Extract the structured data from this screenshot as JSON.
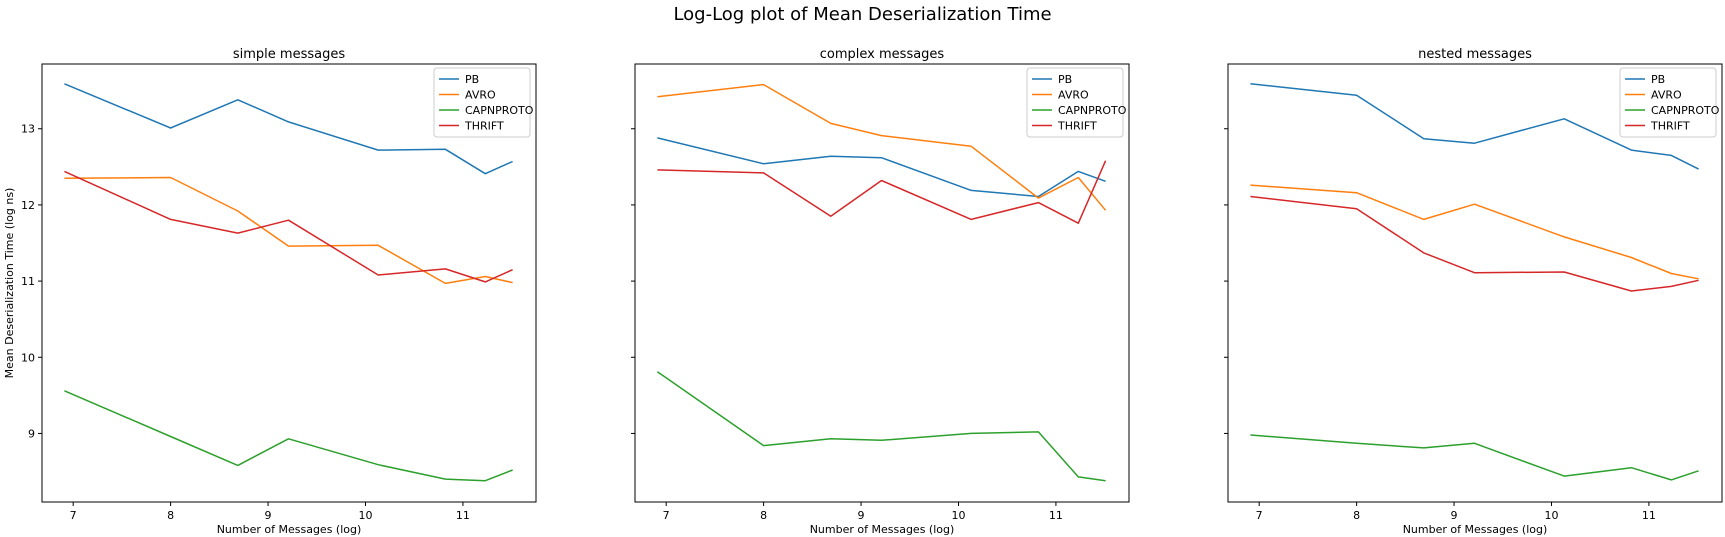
{
  "figure": {
    "suptitle": "Log-Log plot of Mean Deserialization Time"
  },
  "chart_data": [
    {
      "type": "line",
      "title": "simple messages",
      "xlabel": "Number of Messages (log)",
      "ylabel": "Mean Deserialization Time (log ns)",
      "xlim": [
        6.68,
        11.75
      ],
      "ylim": [
        8.1,
        13.85
      ],
      "xticks": [
        7,
        8,
        9,
        10,
        11
      ],
      "yticks": [
        9,
        10,
        11,
        12,
        13
      ],
      "ytick_labels_shown": true,
      "legend": "top-right",
      "series": [
        {
          "name": "PB",
          "color": "#1f77b4",
          "x": [
            6.91,
            8.0,
            8.69,
            9.21,
            10.13,
            10.82,
            11.23,
            11.51
          ],
          "y": [
            13.59,
            13.01,
            13.38,
            13.09,
            12.72,
            12.73,
            12.41,
            12.57
          ]
        },
        {
          "name": "AVRO",
          "color": "#ff7f0e",
          "x": [
            6.91,
            8.0,
            8.69,
            9.21,
            10.13,
            10.82,
            11.23,
            11.51
          ],
          "y": [
            12.35,
            12.36,
            11.92,
            11.46,
            11.47,
            10.97,
            11.06,
            10.98
          ]
        },
        {
          "name": "CAPNPROTO",
          "color": "#2ca02c",
          "x": [
            6.91,
            8.0,
            8.69,
            9.21,
            10.13,
            10.82,
            11.23,
            11.51
          ],
          "y": [
            9.56,
            8.96,
            8.58,
            8.93,
            8.59,
            8.4,
            8.38,
            8.52
          ]
        },
        {
          "name": "THRIFT",
          "color": "#d62728",
          "x": [
            6.91,
            8.0,
            8.69,
            9.21,
            10.13,
            10.82,
            11.23,
            11.51
          ],
          "y": [
            12.44,
            11.81,
            11.63,
            11.8,
            11.08,
            11.16,
            10.99,
            11.15
          ]
        }
      ]
    },
    {
      "type": "line",
      "title": "complex messages",
      "xlabel": "Number of Messages (log)",
      "ylabel": "",
      "xlim": [
        6.68,
        11.75
      ],
      "ylim": [
        8.1,
        13.85
      ],
      "xticks": [
        7,
        8,
        9,
        10,
        11
      ],
      "yticks": [
        9,
        10,
        11,
        12,
        13
      ],
      "ytick_labels_shown": false,
      "legend": "top-right",
      "series": [
        {
          "name": "PB",
          "color": "#1f77b4",
          "x": [
            6.91,
            8.0,
            8.69,
            9.21,
            10.13,
            10.82,
            11.23,
            11.51
          ],
          "y": [
            12.88,
            12.54,
            12.64,
            12.62,
            12.19,
            12.11,
            12.44,
            12.31
          ]
        },
        {
          "name": "AVRO",
          "color": "#ff7f0e",
          "x": [
            6.91,
            8.0,
            8.69,
            9.21,
            10.13,
            10.82,
            11.23,
            11.51
          ],
          "y": [
            13.42,
            13.58,
            13.07,
            12.91,
            12.77,
            12.09,
            12.36,
            11.93
          ]
        },
        {
          "name": "CAPNPROTO",
          "color": "#2ca02c",
          "x": [
            6.91,
            8.0,
            8.69,
            9.21,
            10.13,
            10.82,
            11.23,
            11.51
          ],
          "y": [
            9.81,
            8.84,
            8.93,
            8.91,
            9.0,
            9.02,
            8.43,
            8.38
          ]
        },
        {
          "name": "THRIFT",
          "color": "#d62728",
          "x": [
            6.91,
            8.0,
            8.69,
            9.21,
            10.13,
            10.82,
            11.23,
            11.51
          ],
          "y": [
            12.46,
            12.42,
            11.85,
            12.32,
            11.81,
            12.03,
            11.76,
            12.58
          ]
        }
      ]
    },
    {
      "type": "line",
      "title": "nested messages",
      "xlabel": "Number of Messages (log)",
      "ylabel": "",
      "xlim": [
        6.68,
        11.75
      ],
      "ylim": [
        8.1,
        13.85
      ],
      "xticks": [
        7,
        8,
        9,
        10,
        11
      ],
      "yticks": [
        9,
        10,
        11,
        12,
        13
      ],
      "ytick_labels_shown": false,
      "legend": "top-right",
      "series": [
        {
          "name": "PB",
          "color": "#1f77b4",
          "x": [
            6.91,
            8.0,
            8.69,
            9.21,
            10.13,
            10.82,
            11.23,
            11.51
          ],
          "y": [
            13.59,
            13.44,
            12.87,
            12.81,
            13.13,
            12.72,
            12.65,
            12.47
          ]
        },
        {
          "name": "AVRO",
          "color": "#ff7f0e",
          "x": [
            6.91,
            8.0,
            8.69,
            9.21,
            10.13,
            10.82,
            11.23,
            11.51
          ],
          "y": [
            12.26,
            12.16,
            11.81,
            12.01,
            11.58,
            11.31,
            11.1,
            11.03
          ]
        },
        {
          "name": "CAPNPROTO",
          "color": "#2ca02c",
          "x": [
            6.91,
            8.0,
            8.69,
            9.21,
            10.13,
            10.82,
            11.23,
            11.51
          ],
          "y": [
            8.98,
            8.87,
            8.81,
            8.87,
            8.44,
            8.55,
            8.39,
            8.51
          ]
        },
        {
          "name": "THRIFT",
          "color": "#d62728",
          "x": [
            6.91,
            8.0,
            8.69,
            9.21,
            10.13,
            10.82,
            11.23,
            11.51
          ],
          "y": [
            12.11,
            11.95,
            11.37,
            11.11,
            11.12,
            10.87,
            10.93,
            11.01
          ]
        }
      ]
    }
  ]
}
